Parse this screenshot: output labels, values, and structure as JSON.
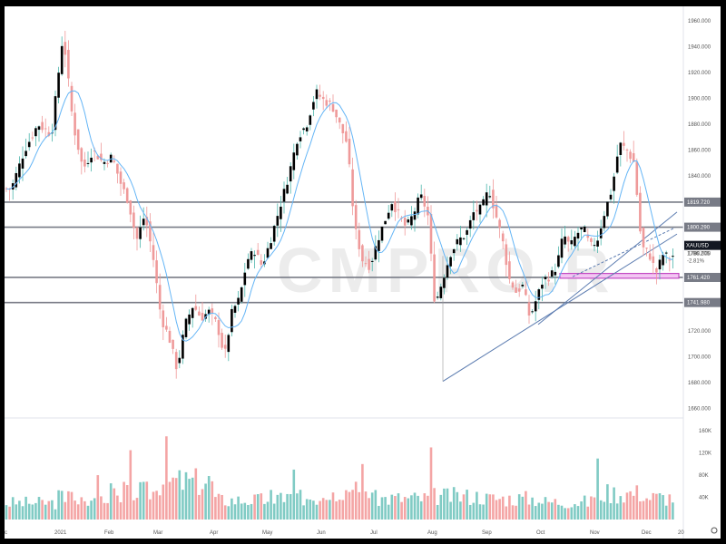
{
  "chart_data": [
    {
      "type": "candlestick",
      "symbol": "XAUUSD",
      "last_price": "1786.205",
      "change_pct": "-2.81%",
      "ylim": [
        1650,
        1965
      ],
      "y_ticks": [
        "1960.000",
        "1940.000",
        "1920.000",
        "1900.000",
        "1880.000",
        "1860.000",
        "1840.000",
        "1820.000",
        "1800.000",
        "1780.000",
        "1760.000",
        "1740.000",
        "1720.000",
        "1700.000",
        "1680.000",
        "1660.000"
      ],
      "x_ticks": [
        "c",
        "2021",
        "Feb",
        "Mar",
        "Apr",
        "May",
        "Jun",
        "Jul",
        "Aug",
        "Sep",
        "Oct",
        "Nov",
        "Dec",
        "20"
      ],
      "levels": [
        {
          "value": 1819.72,
          "label": "1819.720"
        },
        {
          "value": 1800.29,
          "label": "1800.290"
        },
        {
          "value": 1761.42,
          "label": "1761.420"
        },
        {
          "value": 1741.98,
          "label": "1741.980"
        }
      ],
      "support_zone": [
        1760.8,
        1764.5
      ],
      "trendlines": [
        {
          "from": [
            "Aug",
            1681
          ],
          "to": [
            "Dec",
            1795
          ],
          "style": "solid"
        },
        {
          "from": [
            "Sep",
            1725
          ],
          "to": [
            "Dec",
            1812
          ],
          "style": "solid"
        },
        {
          "from": [
            "Oct",
            1762
          ],
          "to": [
            "Dec",
            1800
          ],
          "style": "dashed"
        }
      ],
      "close_path": [
        [
          "2020-12",
          1830
        ],
        [
          "2020-12",
          1860
        ],
        [
          "2020-12",
          1880
        ],
        [
          "2020-12",
          1872
        ],
        [
          "2021-01",
          1950
        ],
        [
          "2021-01",
          1880
        ],
        [
          "2021-01",
          1845
        ],
        [
          "2021-01",
          1860
        ],
        [
          "2021-01",
          1850
        ],
        [
          "2021-02",
          1855
        ],
        [
          "2021-02",
          1835
        ],
        [
          "2021-02",
          1820
        ],
        [
          "2021-02",
          1790
        ],
        [
          "2021-02",
          1810
        ],
        [
          "2021-02",
          1778
        ],
        [
          "2021-03",
          1730
        ],
        [
          "2021-03",
          1715
        ],
        [
          "2021-03",
          1690
        ],
        [
          "2021-03",
          1725
        ],
        [
          "2021-03",
          1740
        ],
        [
          "2021-03",
          1730
        ],
        [
          "2021-03",
          1735
        ],
        [
          "2021-04",
          1725
        ],
        [
          "2021-04",
          1700
        ],
        [
          "2021-04",
          1735
        ],
        [
          "2021-04",
          1745
        ],
        [
          "2021-04",
          1775
        ],
        [
          "2021-04",
          1782
        ],
        [
          "2021-04",
          1770
        ],
        [
          "2021-05",
          1790
        ],
        [
          "2021-05",
          1815
        ],
        [
          "2021-05",
          1840
        ],
        [
          "2021-05",
          1870
        ],
        [
          "2021-05",
          1880
        ],
        [
          "2021-05",
          1905
        ],
        [
          "2021-06",
          1898
        ],
        [
          "2021-06",
          1895
        ],
        [
          "2021-06",
          1880
        ],
        [
          "2021-06",
          1865
        ],
        [
          "2021-06",
          1800
        ],
        [
          "2021-06",
          1775
        ],
        [
          "2021-06",
          1770
        ],
        [
          "2021-07",
          1790
        ],
        [
          "2021-07",
          1805
        ],
        [
          "2021-07",
          1820
        ],
        [
          "2021-07",
          1810
        ],
        [
          "2021-07",
          1800
        ],
        [
          "2021-07",
          1810
        ],
        [
          "2021-07",
          1825
        ],
        [
          "2021-07",
          1812
        ],
        [
          "2021-08",
          1740
        ],
        [
          "2021-08",
          1760
        ],
        [
          "2021-08",
          1780
        ],
        [
          "2021-08",
          1790
        ],
        [
          "2021-08",
          1795
        ],
        [
          "2021-08",
          1812
        ],
        [
          "2021-08",
          1815
        ],
        [
          "2021-09",
          1830
        ],
        [
          "2021-09",
          1810
        ],
        [
          "2021-09",
          1790
        ],
        [
          "2021-09",
          1760
        ],
        [
          "2021-09",
          1750
        ],
        [
          "2021-09",
          1755
        ],
        [
          "2021-09",
          1730
        ],
        [
          "2021-09",
          1745
        ],
        [
          "2021-10",
          1760
        ],
        [
          "2021-10",
          1762
        ],
        [
          "2021-10",
          1770
        ],
        [
          "2021-10",
          1795
        ],
        [
          "2021-10",
          1785
        ],
        [
          "2021-10",
          1795
        ],
        [
          "2021-10",
          1800
        ],
        [
          "2021-10",
          1785
        ],
        [
          "2021-11",
          1790
        ],
        [
          "2021-11",
          1812
        ],
        [
          "2021-11",
          1830
        ],
        [
          "2021-11",
          1865
        ],
        [
          "2021-11",
          1860
        ],
        [
          "2021-11",
          1850
        ],
        [
          "2021-11",
          1785
        ],
        [
          "2021-12",
          1780
        ],
        [
          "2021-12",
          1765
        ],
        [
          "2021-12",
          1780
        ],
        [
          "2021-12",
          1775
        ],
        [
          "2021-12",
          1786
        ]
      ]
    },
    {
      "type": "bar",
      "series": "volume",
      "ylim": [
        0,
        170000
      ],
      "y_ticks": [
        "160K",
        "120K",
        "80K",
        "40K"
      ],
      "monthly_average_k": [
        [
          "Dec",
          30
        ],
        [
          "Jan",
          40
        ],
        [
          "Feb",
          50
        ],
        [
          "Mar",
          68
        ],
        [
          "Apr",
          35
        ],
        [
          "May",
          40
        ],
        [
          "Jun",
          52
        ],
        [
          "Jul",
          38
        ],
        [
          "Aug",
          42
        ],
        [
          "Sep",
          38
        ],
        [
          "Oct",
          32
        ],
        [
          "Nov",
          48
        ],
        [
          "Dec",
          40
        ]
      ],
      "peaks_k": [
        [
          "Jan",
          80
        ],
        [
          "Feb",
          125
        ],
        [
          "Mar",
          150
        ],
        [
          "May",
          90
        ],
        [
          "Jun",
          100
        ],
        [
          "Aug",
          130
        ],
        [
          "Nov",
          110
        ]
      ]
    }
  ],
  "watermark": "CMPRO.R",
  "colors": {
    "up": "#4db6ac",
    "down": "#ef9a9a",
    "volume_up": "#80cbc4",
    "volume_down": "#f4a5a5",
    "candle_body": "#000000",
    "moving_average": "#64b5f6",
    "level_line": "#787b86",
    "trendline": "#5c7cb0",
    "zone_border": "#c34bc3",
    "zone_fill": "#f3c6f3"
  }
}
